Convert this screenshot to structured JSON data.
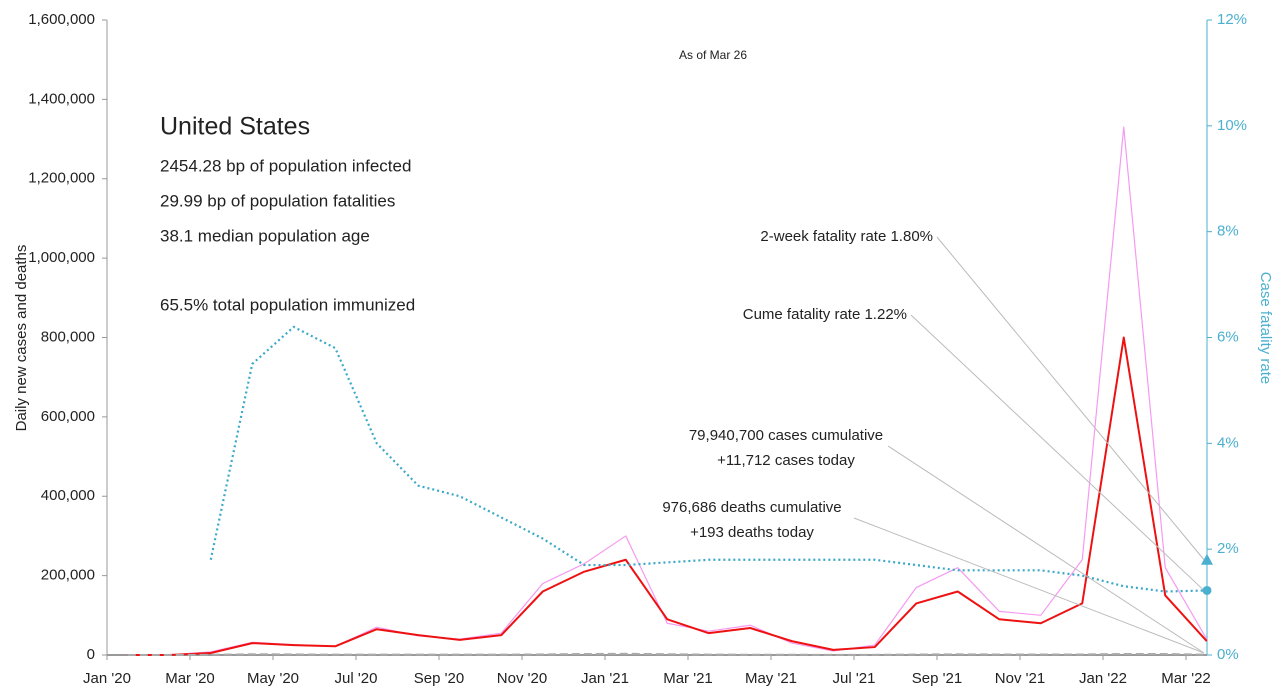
{
  "chart_data": {
    "type": "line",
    "subtitle": "As of Mar 26",
    "title": "United States",
    "info": [
      "2454.28 bp of population infected",
      "29.99 bp of population fatalities",
      "38.1 median population age",
      "65.5% total population immunized"
    ],
    "ylabel": "Daily new cases and deaths",
    "y2label": "Case fatality rate",
    "x": [
      "2020-01",
      "2020-02",
      "2020-03",
      "2020-04",
      "2020-05",
      "2020-06",
      "2020-07",
      "2020-08",
      "2020-09",
      "2020-10",
      "2020-11",
      "2020-12",
      "2021-01",
      "2021-02",
      "2021-03",
      "2021-04",
      "2021-05",
      "2021-06",
      "2021-07",
      "2021-08",
      "2021-09",
      "2021-10",
      "2021-11",
      "2021-12",
      "2022-01",
      "2022-02",
      "2022-03"
    ],
    "xticks": [
      {
        "value": "2020-01",
        "label": "Jan '20"
      },
      {
        "value": "2020-03",
        "label": "Mar '20"
      },
      {
        "value": "2020-05",
        "label": "May '20"
      },
      {
        "value": "2020-07",
        "label": "Jul '20"
      },
      {
        "value": "2020-09",
        "label": "Sep '20"
      },
      {
        "value": "2020-11",
        "label": "Nov '20"
      },
      {
        "value": "2021-01",
        "label": "Jan '21"
      },
      {
        "value": "2021-03",
        "label": "Mar '21"
      },
      {
        "value": "2021-05",
        "label": "May '21"
      },
      {
        "value": "2021-07",
        "label": "Jul '21"
      },
      {
        "value": "2021-09",
        "label": "Sep '21"
      },
      {
        "value": "2021-11",
        "label": "Nov '21"
      },
      {
        "value": "2022-01",
        "label": "Jan '22"
      },
      {
        "value": "2022-03",
        "label": "Mar '22"
      }
    ],
    "ylim": [
      0,
      1600000
    ],
    "yticks": [
      0,
      {
        "value": 200000,
        "label": "200,000"
      },
      {
        "value": 400000,
        "label": "400,000"
      },
      {
        "value": 600000,
        "label": "600,000"
      },
      {
        "value": 800000,
        "label": "800,000"
      },
      {
        "value": 1000000,
        "label": "1,000,000"
      },
      {
        "value": 1200000,
        "label": "1,200,000"
      },
      {
        "value": 1400000,
        "label": "1,400,000"
      },
      {
        "value": 1600000,
        "label": "1,600,000"
      }
    ],
    "y2lim": [
      0,
      12
    ],
    "y2ticks": [
      {
        "value": 0,
        "label": "0%"
      },
      {
        "value": 2,
        "label": "2%"
      },
      {
        "value": 4,
        "label": "4%"
      },
      {
        "value": 6,
        "label": "6%"
      },
      {
        "value": 8,
        "label": "8%"
      },
      {
        "value": 10,
        "label": "10%"
      },
      {
        "value": 12,
        "label": "12%"
      }
    ],
    "series": [
      {
        "color": "#f59af0",
        "style": "solid",
        "width": 1.2,
        "values": [
          0,
          0,
          8000,
          32000,
          26000,
          22000,
          70000,
          48000,
          40000,
          55000,
          180000,
          230000,
          300000,
          80000,
          60000,
          75000,
          30000,
          10000,
          25000,
          170000,
          220000,
          110000,
          100000,
          240000,
          1330000,
          220000,
          40000
        ]
      },
      {
        "color": "#ee1111",
        "style": "solid",
        "width": 2,
        "values": [
          0,
          0,
          5000,
          30000,
          25000,
          22000,
          65000,
          50000,
          38000,
          50000,
          160000,
          210000,
          240000,
          90000,
          55000,
          68000,
          35000,
          13000,
          20000,
          130000,
          160000,
          90000,
          80000,
          130000,
          800000,
          150000,
          35000
        ]
      },
      {
        "color": "#aaaaaa",
        "style": "dashed",
        "width": 2,
        "values": [
          0,
          0,
          500,
          2000,
          1500,
          800,
          1000,
          1000,
          800,
          800,
          1500,
          2500,
          3000,
          2000,
          1000,
          700,
          600,
          300,
          400,
          1200,
          1800,
          1300,
          1200,
          1400,
          2500,
          2400,
          900
        ]
      },
      {
        "color": "#3aa8c8",
        "style": "dotted",
        "width": 2.2,
        "axis": "y2",
        "values": [
          null,
          null,
          1.8,
          5.5,
          6.2,
          5.8,
          4.0,
          3.2,
          3.0,
          2.6,
          2.2,
          1.7,
          1.7,
          1.75,
          1.8,
          1.8,
          1.8,
          1.8,
          1.8,
          1.7,
          1.6,
          1.6,
          1.6,
          1.5,
          1.3,
          1.2,
          1.22
        ]
      }
    ],
    "annotations": [
      {
        "text": "2-week fatality rate 1.80%",
        "value": 1.8,
        "axis": "y2",
        "marker": "triangle"
      },
      {
        "text": "Cume fatality rate 1.22%",
        "value": 1.22,
        "axis": "y2",
        "marker": "circle"
      },
      {
        "text": "79,940,700 cases cumulative",
        "text2": "+11,712 cases today"
      },
      {
        "text": "976,686 deaths cumulative",
        "text2": "+193 deaths today"
      }
    ]
  }
}
